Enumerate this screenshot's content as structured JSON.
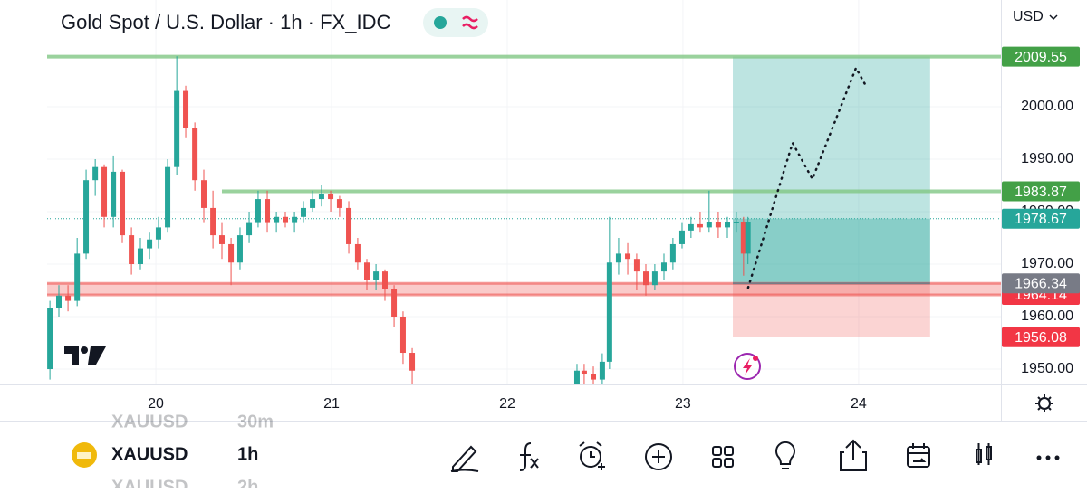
{
  "header": {
    "title": "Gold Spot / U.S. Dollar · 1h · FX_IDC",
    "currency": "USD"
  },
  "chart_data": {
    "type": "candlestick",
    "x": [
      19.397,
      19.448,
      19.5,
      19.552,
      19.603,
      19.655,
      19.706,
      19.758,
      19.809,
      19.861,
      19.912,
      19.964,
      20.015,
      20.067,
      20.119,
      20.17,
      20.222,
      20.273,
      20.325,
      20.376,
      20.428,
      20.479,
      20.531,
      20.582,
      20.634,
      20.686,
      20.737,
      20.789,
      20.84,
      20.892,
      20.943,
      20.995,
      21.046,
      21.098,
      21.149,
      21.201,
      21.253,
      21.304,
      21.356,
      21.407,
      21.459,
      22.397,
      22.438,
      22.49,
      22.541,
      22.582,
      22.634,
      22.686,
      22.737,
      22.789,
      22.84,
      22.892,
      22.943,
      22.995,
      23.046,
      23.098,
      23.149,
      23.201,
      23.253,
      23.304,
      23.345,
      23.37
    ],
    "open": [
      1950,
      1961.7,
      1964,
      1963,
      1972,
      1986,
      1988.5,
      1979,
      1987.6,
      1975.5,
      1970,
      1973,
      1974.7,
      1977,
      1988.5,
      2003,
      1996,
      1986,
      1980.7,
      1975.5,
      1973.8,
      1970.3,
      1975.5,
      1978,
      1982.4,
      1978,
      1979,
      1978,
      1979,
      1980.7,
      1982.4,
      1983.3,
      1982.4,
      1980.7,
      1973.8,
      1970.3,
      1966.9,
      1968.6,
      1965.2,
      1960,
      1953.1,
      1946,
      1949.7,
      1949,
      1948,
      1951.4,
      1970.3,
      1972,
      1971,
      1968.6,
      1966,
      1968.6,
      1970.3,
      1973.8,
      1976.4,
      1977.6,
      1977,
      1978.1,
      1977,
      1978.1,
      1978.1,
      1972
    ],
    "high": [
      1963,
      1966,
      1966,
      1975,
      1988,
      1990,
      1989,
      1990.7,
      1988,
      1977,
      1975,
      1976,
      1979,
      1990,
      2009.6,
      2004,
      1997,
      1988,
      1984,
      1978,
      1975,
      1977,
      1980,
      1984,
      1984,
      1980,
      1980,
      1980,
      1982,
      1984,
      1985,
      1984,
      1983,
      1982,
      1975,
      1971,
      1970,
      1969,
      1966,
      1961,
      1954,
      1951,
      1951,
      1950.5,
      1953,
      1979,
      1975,
      1974,
      1972,
      1970,
      1970,
      1972,
      1975,
      1978,
      1979,
      1980,
      1984,
      1980,
      1979,
      1980,
      1979,
      1979
    ],
    "low": [
      1948,
      1960,
      1961,
      1962,
      1971,
      1983,
      1977,
      1977,
      1974,
      1968,
      1969,
      1971,
      1973,
      1976,
      1987,
      1994,
      1984,
      1978,
      1973,
      1971,
      1966,
      1969,
      1974,
      1977,
      1976,
      1976,
      1977,
      1976,
      1978,
      1980,
      1981,
      1980,
      1979,
      1972,
      1969,
      1965,
      1965,
      1963,
      1958,
      1951,
      1946,
      1945,
      1946,
      1946,
      1946,
      1950,
      1968,
      1968,
      1965,
      1964,
      1965,
      1967,
      1969,
      1973,
      1975,
      1976,
      1976,
      1975,
      1975,
      1976,
      1967.8,
      1970
    ],
    "close": [
      1961.7,
      1964,
      1963,
      1972,
      1986,
      1988.5,
      1979,
      1987.6,
      1975.5,
      1970,
      1973,
      1974.7,
      1977,
      1988.5,
      2003,
      1996,
      1986,
      1980.7,
      1975.5,
      1973.8,
      1970.3,
      1975.5,
      1978,
      1982.4,
      1978,
      1979,
      1978,
      1979,
      1980.7,
      1982.4,
      1983.3,
      1982.4,
      1980.7,
      1973.8,
      1970.3,
      1966.9,
      1968.6,
      1965.2,
      1960,
      1953.1,
      1949.7,
      1949.7,
      1949,
      1948,
      1951.4,
      1970.3,
      1972,
      1971,
      1968.6,
      1966,
      1968.6,
      1970.3,
      1973.8,
      1976.4,
      1977.6,
      1977,
      1978.1,
      1977,
      1978.1,
      1978.1,
      1972,
      1978.1
    ],
    "up_color": "#26a69a",
    "down_color": "#ef5350",
    "xlim": [
      19.381,
      24.81
    ],
    "xticks": [
      20,
      21,
      22,
      23,
      24
    ],
    "ylim": [
      1947.07,
      2020.34
    ],
    "yticks": [
      {
        "value": 1950,
        "label": "1950.00"
      },
      {
        "value": 1960,
        "label": "1960.00"
      },
      {
        "value": 1970,
        "label": "1970.00"
      },
      {
        "value": 1980,
        "label": "1980.00"
      },
      {
        "value": 1990,
        "label": "1990.00"
      },
      {
        "value": 2000,
        "label": "2000.00"
      }
    ],
    "grid": true,
    "levels": [
      {
        "value": 1964.14,
        "to": 1966.34,
        "label": "1964.14",
        "color": "#ef5350",
        "x_from": 19.381
      },
      {
        "value": 2009.55,
        "label": "2009.55",
        "color": "#81c784",
        "x_from": 19.381
      },
      {
        "value": 1983.87,
        "label": "1983.87",
        "color": "#81c784",
        "x_from": 20.376
      }
    ],
    "last_price": {
      "value": 1978.67,
      "label": "1978.67",
      "color": "#26a69a"
    },
    "position": {
      "x_from": 23.284,
      "x_to": 24.407,
      "entry": 1966.34,
      "entry_label": "1966.34",
      "target": 2009.55,
      "stop": 1956.08,
      "stop_label": "1956.08"
    },
    "projection": {
      "x": [
        23.371,
        23.624,
        23.737,
        23.985,
        24.036
      ],
      "y": [
        1965.5,
        1993.1,
        1986.2,
        2007.4,
        2004.3
      ]
    }
  },
  "bottom_bar": {
    "symbols": [
      {
        "symbol": "XAUUSD",
        "interval": "30m"
      },
      {
        "symbol": "XAUUSD",
        "interval": "1h"
      },
      {
        "symbol": "XAUUSD",
        "interval": "2h"
      }
    ],
    "active": 1
  }
}
